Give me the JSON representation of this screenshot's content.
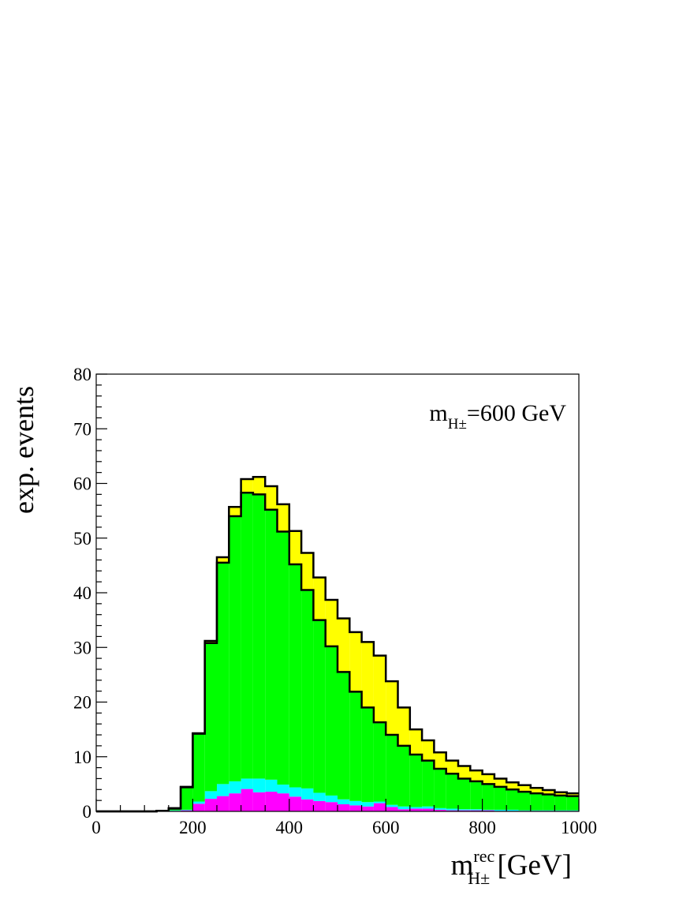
{
  "chart_data": {
    "type": "stacked-histogram",
    "y_label": "exp. events",
    "x_label": {
      "base": "m",
      "sup": "rec",
      "sub": "H±",
      "rest": " [GeV]"
    },
    "annotation": {
      "base": "m",
      "sub": "H±",
      "rest": "=600 GeV"
    },
    "bins": [
      0,
      25,
      50,
      75,
      100,
      125,
      150,
      175,
      200,
      225,
      250,
      275,
      300,
      325,
      350,
      375,
      400,
      425,
      450,
      475,
      500,
      525,
      550,
      575,
      600,
      625,
      650,
      675,
      700,
      725,
      750,
      775,
      800,
      825,
      850,
      875,
      900,
      925,
      950,
      975,
      1000
    ],
    "series": [
      {
        "color": "#ff00ff",
        "values": [
          0,
          0,
          0,
          0,
          0,
          0,
          0.1,
          0.2,
          1.4,
          2.3,
          2.8,
          3.3,
          4.1,
          3.5,
          3.6,
          3.3,
          2.7,
          2.2,
          1.9,
          1.7,
          1.3,
          1.1,
          0.9,
          1.5,
          0.8,
          0.4,
          0.5,
          0.5,
          0.3,
          0.2,
          0.2,
          0.2,
          0.2,
          0.1,
          0.1,
          0.1,
          0.1,
          0.1,
          0.1,
          0.1
        ]
      },
      {
        "color": "#00ffff",
        "values": [
          0,
          0,
          0,
          0,
          0,
          0,
          0.1,
          0.1,
          0.4,
          1.4,
          2.2,
          2.2,
          1.9,
          2.5,
          2.2,
          1.6,
          1.7,
          2.0,
          1.5,
          1.2,
          0.9,
          0.8,
          0.8,
          0.3,
          0.4,
          0.5,
          0.3,
          0.4,
          0.3,
          0.3,
          0.2,
          0.2,
          0.1,
          0.2,
          0.2,
          0.1,
          0.1,
          0.1,
          0.1,
          0.1
        ]
      },
      {
        "color": "#00ff00",
        "values": [
          0,
          0,
          0,
          0,
          0,
          0.1,
          0.3,
          4.1,
          12.4,
          27.1,
          40.5,
          48.5,
          52.3,
          52.0,
          49.4,
          46.3,
          40.8,
          36.3,
          31.6,
          27.3,
          23.3,
          20.0,
          17.3,
          14.5,
          12.8,
          11.1,
          9.6,
          8.4,
          7.2,
          6.4,
          5.6,
          5.1,
          4.7,
          4.2,
          3.7,
          3.4,
          3.1,
          2.9,
          2.7,
          2.6
        ]
      },
      {
        "color": "#ffff00",
        "values": [
          0,
          0,
          0,
          0,
          0,
          0,
          0.1,
          0.1,
          0.1,
          0.4,
          1.0,
          1.7,
          2.5,
          3.2,
          4.3,
          5.0,
          6.1,
          6.8,
          7.8,
          8.5,
          9.8,
          10.9,
          12.0,
          12.2,
          9.8,
          7.0,
          4.6,
          3.7,
          3.0,
          2.4,
          2.3,
          2.0,
          1.8,
          1.5,
          1.3,
          1.2,
          1.0,
          0.8,
          0.6,
          0.5
        ]
      }
    ],
    "xlim": [
      0,
      1000
    ],
    "xticks": [
      0,
      200,
      400,
      600,
      800,
      1000
    ],
    "ylim": [
      0,
      80
    ],
    "yticks": [
      0,
      10,
      20,
      30,
      40,
      50,
      60,
      70,
      80
    ]
  }
}
